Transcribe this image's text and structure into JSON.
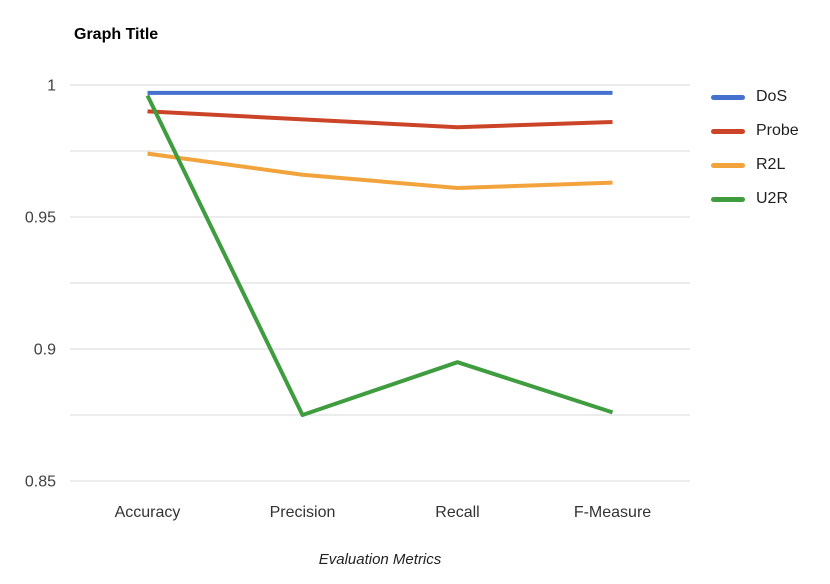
{
  "chart_data": {
    "type": "line",
    "title": "Graph Title",
    "xlabel": "Evaluation Metrics",
    "ylabel": "",
    "categories": [
      "Accuracy",
      "Precision",
      "Recall",
      "F-Measure"
    ],
    "series": [
      {
        "name": "DoS",
        "color": "#4471CE",
        "values": [
          0.997,
          0.997,
          0.997,
          0.997
        ]
      },
      {
        "name": "Probe",
        "color": "#CC4428",
        "values": [
          0.99,
          0.987,
          0.984,
          0.986
        ]
      },
      {
        "name": "R2L",
        "color": "#F2A33C",
        "values": [
          0.974,
          0.966,
          0.961,
          0.963
        ]
      },
      {
        "name": "U2R",
        "color": "#3F9D3F",
        "values": [
          0.996,
          0.875,
          0.895,
          0.876
        ]
      }
    ],
    "ylim": [
      0.85,
      1.0
    ],
    "yticks": [
      1,
      0.95,
      0.9,
      0.85
    ],
    "ytick_labels": [
      "1",
      "0.95",
      "0.9",
      "0.85"
    ],
    "grid_step": 0.025,
    "grid": true,
    "legend_position": "right",
    "gridline_color": "#D8D8D8",
    "tick_label_color": "#404040",
    "background_color": "#ffffff"
  }
}
